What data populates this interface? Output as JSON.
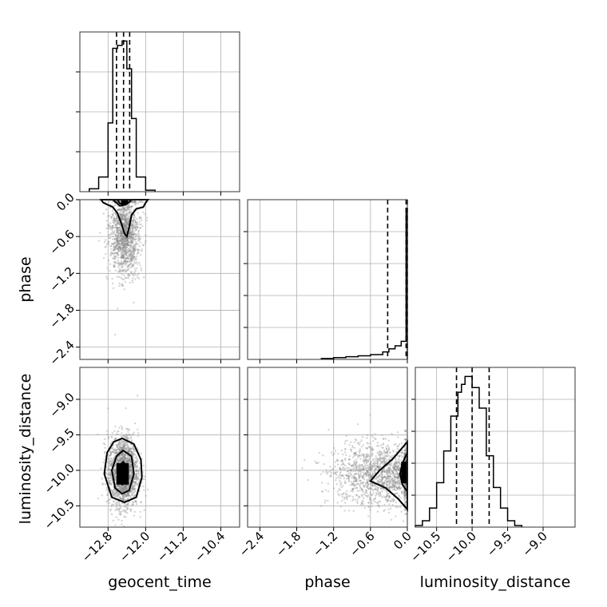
{
  "chart_data": [
    {
      "type": "histogram",
      "panel": "geocent_time",
      "xlim": [
        -13.4,
        -10.0
      ],
      "x_ticks": [
        -12.8,
        -12.0,
        -11.2,
        -10.4
      ],
      "y_gridlines": 3,
      "bins": [
        {
          "x0": -13.2,
          "x1": -13.0,
          "count": 2
        },
        {
          "x0": -13.0,
          "x1": -12.8,
          "count": 10
        },
        {
          "x0": -12.8,
          "x1": -12.7,
          "count": 47
        },
        {
          "x0": -12.7,
          "x1": -12.6,
          "count": 98
        },
        {
          "x0": -12.6,
          "x1": -12.5,
          "count": 100
        },
        {
          "x0": -12.5,
          "x1": -12.4,
          "count": 103
        },
        {
          "x0": -12.4,
          "x1": -12.3,
          "count": 84
        },
        {
          "x0": -12.3,
          "x1": -12.2,
          "count": 50
        },
        {
          "x0": -12.2,
          "x1": -12.0,
          "count": 10
        },
        {
          "x0": -12.0,
          "x1": -11.8,
          "count": 1
        }
      ],
      "quantiles": [
        -12.62,
        -12.47,
        -12.34
      ]
    },
    {
      "type": "scatter-contour",
      "panel": "geocent_time vs phase",
      "xlim": [
        -13.4,
        -10.0
      ],
      "ylim": [
        -2.6,
        0.0
      ],
      "y_ticks": [
        0.0,
        -0.6,
        -1.2,
        -1.8,
        -2.4
      ],
      "ylabel": "phase",
      "contours": [
        [
          [
            -12.95,
            0.0
          ],
          [
            -12.9,
            -0.05
          ],
          [
            -12.7,
            -0.12
          ],
          [
            -12.6,
            -0.22
          ],
          [
            -12.52,
            -0.38
          ],
          [
            -12.45,
            -0.55
          ],
          [
            -12.4,
            -0.6
          ],
          [
            -12.35,
            -0.45
          ],
          [
            -12.3,
            -0.25
          ],
          [
            -12.2,
            -0.15
          ],
          [
            -12.05,
            -0.12
          ],
          [
            -12.0,
            -0.05
          ],
          [
            -11.95,
            0.0
          ]
        ],
        [
          [
            -12.7,
            0.0
          ],
          [
            -12.62,
            -0.05
          ],
          [
            -12.55,
            -0.1
          ],
          [
            -12.42,
            -0.08
          ],
          [
            -12.35,
            -0.04
          ],
          [
            -12.3,
            0.0
          ]
        ],
        [
          [
            -12.6,
            0.0
          ],
          [
            -12.55,
            -0.06
          ],
          [
            -12.48,
            -0.08
          ],
          [
            -12.4,
            -0.06
          ],
          [
            -12.38,
            0.0
          ]
        ]
      ],
      "dense_region": [
        -12.52,
        -12.4,
        0.0,
        -0.08
      ]
    },
    {
      "type": "histogram",
      "panel": "phase",
      "xlim": [
        -2.6,
        0.0
      ],
      "y_gridlines": 4,
      "bins": [
        {
          "x0": -1.4,
          "x1": -1.2,
          "count": 0.6
        },
        {
          "x0": -1.2,
          "x1": -1.0,
          "count": 1.2
        },
        {
          "x0": -1.0,
          "x1": -0.8,
          "count": 1.8
        },
        {
          "x0": -0.8,
          "x1": -0.6,
          "count": 2.4
        },
        {
          "x0": -0.6,
          "x1": -0.4,
          "count": 3.2
        },
        {
          "x0": -0.4,
          "x1": -0.3,
          "count": 5
        },
        {
          "x0": -0.3,
          "x1": -0.2,
          "count": 7
        },
        {
          "x0": -0.2,
          "x1": -0.1,
          "count": 9
        },
        {
          "x0": -0.1,
          "x1": -0.02,
          "count": 12
        },
        {
          "x0": -0.02,
          "x1": 0.0,
          "count": 100
        }
      ],
      "quantiles": [
        -0.32,
        -0.02,
        0.0
      ]
    },
    {
      "type": "scatter-contour",
      "panel": "geocent_time vs luminosity_distance",
      "xlim": [
        -13.4,
        -10.0
      ],
      "ylim": [
        -10.8,
        -8.55
      ],
      "x_ticks": [
        -12.8,
        -12.0,
        -11.2,
        -10.4
      ],
      "y_ticks": [
        -9.0,
        -9.5,
        -10.0,
        -10.5
      ],
      "xlabel": "geocent_time",
      "ylabel": "luminosity_distance",
      "contours": [
        [
          [
            -12.5,
            -9.55
          ],
          [
            -12.25,
            -9.63
          ],
          [
            -12.1,
            -9.85
          ],
          [
            -12.08,
            -10.1
          ],
          [
            -12.2,
            -10.38
          ],
          [
            -12.45,
            -10.45
          ],
          [
            -12.72,
            -10.38
          ],
          [
            -12.88,
            -10.05
          ],
          [
            -12.82,
            -9.75
          ],
          [
            -12.68,
            -9.6
          ]
        ],
        [
          [
            -12.48,
            -9.72
          ],
          [
            -12.3,
            -9.8
          ],
          [
            -12.25,
            -10.05
          ],
          [
            -12.35,
            -10.28
          ],
          [
            -12.5,
            -10.33
          ],
          [
            -12.65,
            -10.25
          ],
          [
            -12.72,
            -10.0
          ],
          [
            -12.62,
            -9.8
          ]
        ],
        [
          [
            -12.48,
            -9.88
          ],
          [
            -12.38,
            -9.95
          ],
          [
            -12.38,
            -10.12
          ],
          [
            -12.5,
            -10.2
          ],
          [
            -12.6,
            -10.1
          ],
          [
            -12.58,
            -9.95
          ]
        ]
      ],
      "dense_region": [
        -12.62,
        -12.36,
        -9.9,
        -10.2
      ]
    },
    {
      "type": "scatter-contour",
      "panel": "phase vs luminosity_distance",
      "xlim": [
        -2.6,
        0.0
      ],
      "ylim": [
        -10.8,
        -8.55
      ],
      "x_ticks": [
        -2.4,
        -1.8,
        -1.2,
        -0.6,
        0.0
      ],
      "xlabel": "phase",
      "contours": [
        [
          [
            0.0,
            -9.6
          ],
          [
            -0.1,
            -9.7
          ],
          [
            -0.25,
            -9.85
          ],
          [
            -0.45,
            -10.0
          ],
          [
            -0.6,
            -10.15
          ],
          [
            -0.35,
            -10.25
          ],
          [
            -0.15,
            -10.4
          ],
          [
            -0.05,
            -10.5
          ],
          [
            0.0,
            -10.55
          ]
        ],
        [
          [
            0.0,
            -9.75
          ],
          [
            -0.08,
            -9.9
          ],
          [
            -0.12,
            -10.05
          ],
          [
            -0.08,
            -10.2
          ],
          [
            0.0,
            -10.3
          ]
        ],
        [
          [
            0.0,
            -9.85
          ],
          [
            -0.06,
            -10.0
          ],
          [
            -0.06,
            -10.12
          ],
          [
            0.0,
            -10.2
          ]
        ]
      ],
      "dense_region": [
        -0.1,
        0.0,
        -9.88,
        -10.18
      ]
    },
    {
      "type": "histogram",
      "panel": "luminosity_distance",
      "xlim": [
        -10.8,
        -8.55
      ],
      "x_ticks": [
        -10.5,
        -10.0,
        -9.5,
        -9.0
      ],
      "xlabel": "luminosity_distance",
      "y_gridlines": 4,
      "bins": [
        {
          "x0": -10.8,
          "x1": -10.7,
          "count": 1
        },
        {
          "x0": -10.7,
          "x1": -10.6,
          "count": 4
        },
        {
          "x0": -10.6,
          "x1": -10.5,
          "count": 12
        },
        {
          "x0": -10.5,
          "x1": -10.4,
          "count": 28
        },
        {
          "x0": -10.4,
          "x1": -10.3,
          "count": 48
        },
        {
          "x0": -10.3,
          "x1": -10.2,
          "count": 70
        },
        {
          "x0": -10.2,
          "x1": -10.15,
          "count": 85
        },
        {
          "x0": -10.15,
          "x1": -10.1,
          "count": 90
        },
        {
          "x0": -10.1,
          "x1": -10.0,
          "count": 95
        },
        {
          "x0": -10.0,
          "x1": -9.9,
          "count": 88
        },
        {
          "x0": -9.9,
          "x1": -9.8,
          "count": 75
        },
        {
          "x0": -9.8,
          "x1": -9.7,
          "count": 45
        },
        {
          "x0": -9.7,
          "x1": -9.6,
          "count": 25
        },
        {
          "x0": -9.6,
          "x1": -9.5,
          "count": 12
        },
        {
          "x0": -9.5,
          "x1": -9.4,
          "count": 4
        },
        {
          "x0": -9.4,
          "x1": -9.3,
          "count": 1
        }
      ],
      "quantiles": [
        -10.22,
        -10.0,
        -9.76
      ]
    }
  ]
}
